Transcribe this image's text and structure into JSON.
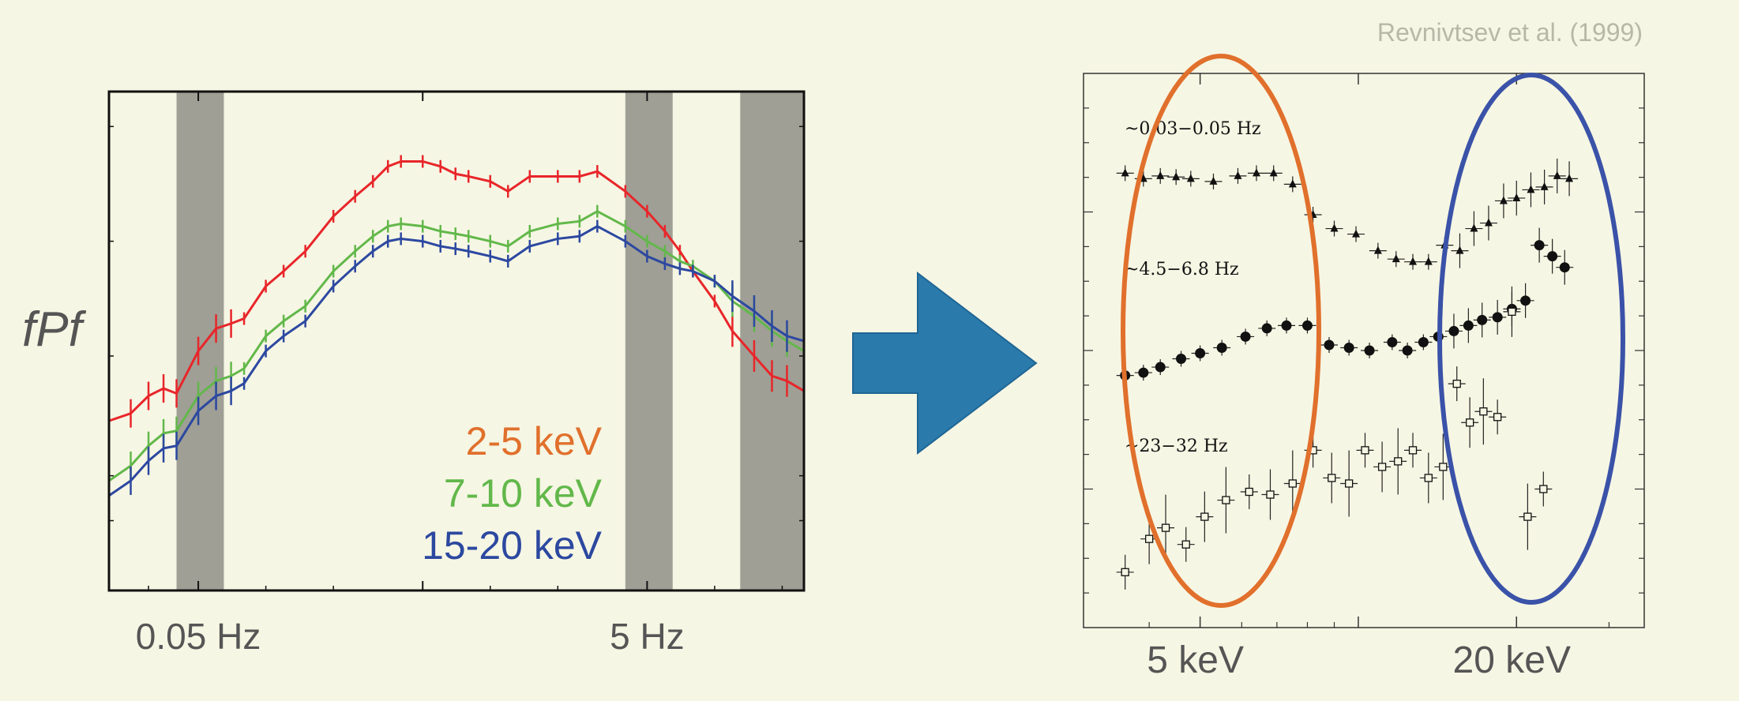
{
  "citation": "Revnivtsev et al. (1999)",
  "colors": {
    "background": "#f6f6e4",
    "red": "#e8262a",
    "green": "#62b84a",
    "blue": "#2c48a0",
    "orange_ellipse": "#e0702c",
    "blue_ellipse": "#3a52a8",
    "arrow": "#2a7aac",
    "band": "#9a9a90"
  },
  "arrow_icon": "right-arrow-icon",
  "chart_data": [
    {
      "type": "line",
      "title": "",
      "ylabel": "fPf",
      "xlabel": "",
      "x_scale": "log",
      "x_tick_labels": [
        "0.05 Hz",
        "5 Hz"
      ],
      "x_tick_values": [
        0.05,
        5
      ],
      "xlim": [
        0.02,
        25
      ],
      "ylim": [
        0,
        1
      ],
      "highlight_bands": [
        [
          0.04,
          0.065
        ],
        [
          4,
          6.5
        ],
        [
          13,
          25
        ]
      ],
      "legend": [
        "2-5 keV",
        "7-10 keV",
        "15-20 keV"
      ],
      "legend_position": "bottom-center",
      "x": [
        0.02,
        0.025,
        0.03,
        0.035,
        0.04,
        0.05,
        0.06,
        0.07,
        0.08,
        0.1,
        0.12,
        0.15,
        0.2,
        0.25,
        0.3,
        0.35,
        0.4,
        0.5,
        0.6,
        0.7,
        0.8,
        1.0,
        1.2,
        1.5,
        2.0,
        2.5,
        3.0,
        4.0,
        5.0,
        6.0,
        7.0,
        8.0,
        10.0,
        12.0,
        15.0,
        18.0,
        21.0,
        25.0
      ],
      "series": [
        {
          "name": "2-5 keV",
          "color": "#e8262a",
          "values": [
            0.34,
            0.355,
            0.39,
            0.405,
            0.395,
            0.48,
            0.525,
            0.535,
            0.545,
            0.61,
            0.64,
            0.68,
            0.75,
            0.79,
            0.82,
            0.85,
            0.86,
            0.86,
            0.85,
            0.835,
            0.83,
            0.82,
            0.8,
            0.83,
            0.83,
            0.83,
            0.84,
            0.8,
            0.76,
            0.72,
            0.68,
            0.64,
            0.58,
            0.52,
            0.47,
            0.43,
            0.42,
            0.4
          ]
        },
        {
          "name": "7-10 keV",
          "color": "#62b84a",
          "values": [
            0.22,
            0.25,
            0.29,
            0.315,
            0.32,
            0.39,
            0.42,
            0.43,
            0.445,
            0.51,
            0.54,
            0.57,
            0.64,
            0.68,
            0.71,
            0.73,
            0.735,
            0.73,
            0.72,
            0.715,
            0.71,
            0.7,
            0.69,
            0.72,
            0.735,
            0.74,
            0.76,
            0.73,
            0.7,
            0.68,
            0.66,
            0.65,
            0.62,
            0.58,
            0.55,
            0.52,
            0.5,
            0.48
          ]
        },
        {
          "name": "15-20 keV",
          "color": "#2c48a0",
          "values": [
            0.19,
            0.22,
            0.26,
            0.285,
            0.29,
            0.36,
            0.39,
            0.4,
            0.415,
            0.48,
            0.51,
            0.54,
            0.61,
            0.65,
            0.68,
            0.7,
            0.705,
            0.7,
            0.69,
            0.685,
            0.68,
            0.67,
            0.66,
            0.69,
            0.705,
            0.71,
            0.73,
            0.7,
            0.67,
            0.655,
            0.645,
            0.64,
            0.62,
            0.59,
            0.56,
            0.53,
            0.51,
            0.5
          ]
        }
      ]
    },
    {
      "type": "scatter",
      "title": "",
      "xlabel": "",
      "ylabel": "",
      "x_scale": "log",
      "x_tick_labels": [
        "5 keV",
        "20 keV"
      ],
      "x_tick_values": [
        5,
        20
      ],
      "xlim": [
        3,
        35
      ],
      "ylim": [
        0,
        1
      ],
      "series": [
        {
          "name": "~0.03−0.05 Hz",
          "marker": "triangle",
          "x": [
            3.6,
            3.9,
            4.2,
            4.5,
            4.8,
            5.3,
            5.9,
            6.4,
            6.9,
            7.5,
            8.2,
            9.0,
            9.9,
            10.9,
            11.8,
            12.7,
            13.6,
            14.6,
            15.6,
            16.6,
            17.7,
            18.9,
            20.0,
            21.3,
            22.6,
            23.9,
            25.2
          ],
          "y": [
            0.82,
            0.81,
            0.815,
            0.813,
            0.81,
            0.805,
            0.815,
            0.82,
            0.82,
            0.8,
            0.745,
            0.72,
            0.71,
            0.68,
            0.665,
            0.66,
            0.66,
            0.69,
            0.68,
            0.72,
            0.73,
            0.77,
            0.775,
            0.79,
            0.795,
            0.815,
            0.81
          ]
        },
        {
          "name": "~4.5−6.8 Hz",
          "marker": "circle",
          "x": [
            3.6,
            3.9,
            4.2,
            4.6,
            5.0,
            5.5,
            6.1,
            6.7,
            7.3,
            8.0,
            8.8,
            9.6,
            10.5,
            11.6,
            12.4,
            13.3,
            14.2,
            15.2,
            16.2,
            17.2,
            18.4,
            19.6,
            20.8,
            22.1,
            23.4,
            24.7
          ],
          "y": [
            0.455,
            0.46,
            0.47,
            0.485,
            0.495,
            0.505,
            0.525,
            0.54,
            0.545,
            0.545,
            0.51,
            0.505,
            0.5,
            0.515,
            0.5,
            0.515,
            0.525,
            0.535,
            0.545,
            0.555,
            0.56,
            0.575,
            0.59,
            0.69,
            0.67,
            0.65
          ]
        },
        {
          "name": "~23−32 Hz",
          "marker": "open-square",
          "x": [
            3.6,
            4.0,
            4.3,
            4.7,
            5.1,
            5.6,
            6.2,
            6.8,
            7.5,
            8.2,
            8.9,
            9.6,
            10.3,
            11.1,
            11.9,
            12.7,
            13.6,
            14.5,
            15.4,
            16.3,
            17.3,
            18.4,
            19.6,
            21.0,
            22.5
          ],
          "y": [
            0.1,
            0.16,
            0.18,
            0.15,
            0.2,
            0.23,
            0.245,
            0.24,
            0.26,
            0.32,
            0.27,
            0.26,
            0.32,
            0.29,
            0.3,
            0.32,
            0.27,
            0.29,
            0.44,
            0.37,
            0.39,
            0.38,
            0.57,
            0.2,
            0.25
          ]
        }
      ],
      "highlight_ellipses": [
        {
          "encloses_x_range_keV": [
            3,
            8.5
          ],
          "color": "orange"
        },
        {
          "encloses_x_range_keV": [
            15,
            30
          ],
          "color": "blue"
        }
      ]
    }
  ]
}
